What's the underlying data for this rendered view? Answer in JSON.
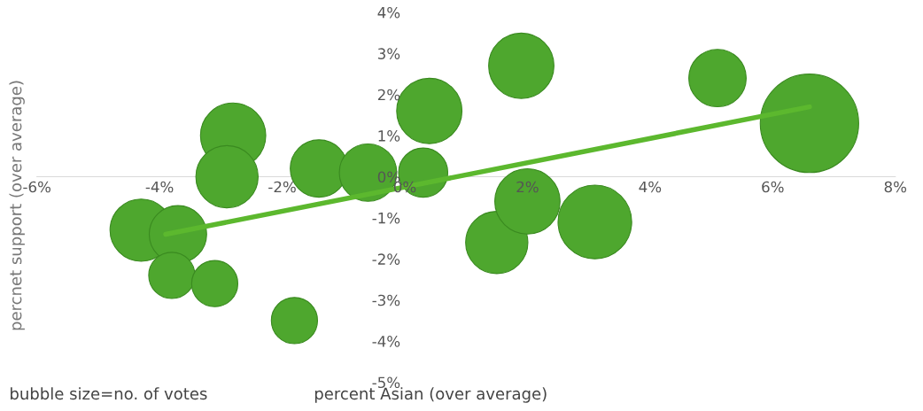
{
  "chart_data": {
    "type": "bubble",
    "xlabel": "percent Asian (over average)",
    "ylabel": "percnet support (over average)",
    "annotations": [
      "bubble size=no. of votes"
    ],
    "xlim": [
      -6,
      8
    ],
    "ylim": [
      -5,
      4
    ],
    "xticks": [
      {
        "value": -6,
        "label": "-6%"
      },
      {
        "value": -4,
        "label": "-4%"
      },
      {
        "value": -2,
        "label": "-2%"
      },
      {
        "value": 0,
        "label": "0%"
      },
      {
        "value": 2,
        "label": "2%"
      },
      {
        "value": 4,
        "label": "4%"
      },
      {
        "value": 6,
        "label": "6%"
      },
      {
        "value": 8,
        "label": "8%"
      }
    ],
    "yticks": [
      {
        "value": -5,
        "label": "-5%"
      },
      {
        "value": -4,
        "label": "-4%"
      },
      {
        "value": -3,
        "label": "-3%"
      },
      {
        "value": -2,
        "label": "-2%"
      },
      {
        "value": -1,
        "label": "-1%"
      },
      {
        "value": 0,
        "label": "0%"
      },
      {
        "value": 1,
        "label": "1%"
      },
      {
        "value": 2,
        "label": "2%"
      },
      {
        "value": 3,
        "label": "3%"
      },
      {
        "value": 4,
        "label": "4%"
      }
    ],
    "grid": false,
    "series": [
      {
        "color": "#4ea72e",
        "x": [
          -4.3,
          -3.7,
          -2.8,
          -2.9,
          -3.8,
          -3.1,
          -1.8,
          -1.4,
          -0.6,
          0.3,
          0.4,
          1.5,
          1.9,
          2.0,
          3.1,
          5.1,
          6.6
        ],
        "values": [
          -1.3,
          -1.4,
          1.0,
          0.0,
          -2.4,
          -2.6,
          -3.5,
          0.2,
          0.1,
          0.1,
          1.6,
          -1.6,
          2.7,
          -0.6,
          -1.1,
          2.4,
          1.3
        ],
        "sizes": [
          0.4,
          0.34,
          0.44,
          0.4,
          0.22,
          0.22,
          0.22,
          0.34,
          0.34,
          0.25,
          0.44,
          0.4,
          0.44,
          0.44,
          0.56,
          0.34,
          1
        ]
      },
      {
        "type": "line",
        "color": "#5cb82e",
        "x": [
          -3.9,
          6.6
        ],
        "values": [
          -1.4,
          1.7
        ]
      }
    ]
  }
}
